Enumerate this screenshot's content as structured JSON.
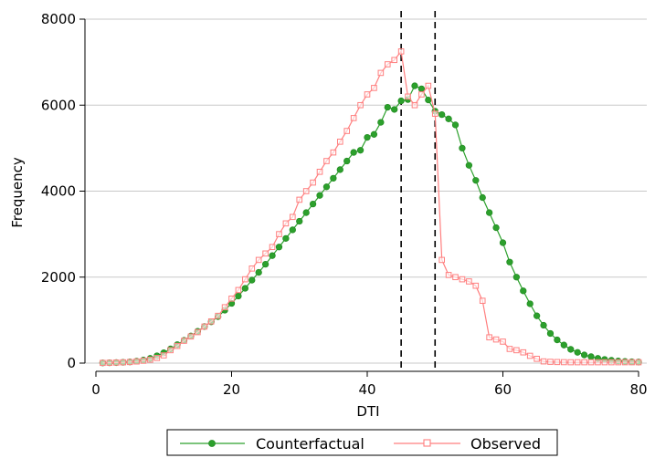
{
  "chart_data": {
    "type": "line",
    "xlabel": "DTI",
    "ylabel": "Frequency",
    "xlim": [
      0,
      80
    ],
    "ylim": [
      0,
      8000
    ],
    "xticks": [
      0,
      20,
      40,
      60,
      80
    ],
    "yticks": [
      0,
      2000,
      4000,
      6000,
      8000
    ],
    "grid": "horizontal",
    "legend_position": "bottom",
    "vlines": [
      45,
      50
    ],
    "series": [
      {
        "name": "Counterfactual",
        "color": "#2ca02c",
        "marker": "circle",
        "x": [
          1,
          2,
          3,
          4,
          5,
          6,
          7,
          8,
          9,
          10,
          11,
          12,
          13,
          14,
          15,
          16,
          17,
          18,
          19,
          20,
          21,
          22,
          23,
          24,
          25,
          26,
          27,
          28,
          29,
          30,
          31,
          32,
          33,
          34,
          35,
          36,
          37,
          38,
          39,
          40,
          41,
          42,
          43,
          44,
          45,
          46,
          47,
          48,
          49,
          50,
          51,
          52,
          53,
          54,
          55,
          56,
          57,
          58,
          59,
          60,
          61,
          62,
          63,
          64,
          65,
          66,
          67,
          68,
          69,
          70,
          71,
          72,
          73,
          74,
          75,
          76,
          77,
          78,
          79,
          80
        ],
        "values": [
          5,
          8,
          12,
          18,
          28,
          45,
          70,
          110,
          170,
          240,
          330,
          430,
          530,
          630,
          740,
          850,
          960,
          1080,
          1230,
          1390,
          1560,
          1740,
          1930,
          2110,
          2300,
          2500,
          2700,
          2900,
          3100,
          3300,
          3500,
          3700,
          3900,
          4100,
          4300,
          4500,
          4700,
          4900,
          4950,
          5250,
          5320,
          5600,
          5950,
          5900,
          6100,
          6130,
          6450,
          6380,
          6120,
          5860,
          5780,
          5680,
          5540,
          5000,
          4600,
          4250,
          3850,
          3500,
          3150,
          2800,
          2350,
          2000,
          1680,
          1380,
          1100,
          880,
          690,
          540,
          420,
          320,
          250,
          190,
          150,
          110,
          85,
          65,
          50,
          40,
          32,
          25
        ]
      },
      {
        "name": "Observed",
        "color": "#ff7f7f",
        "marker": "square",
        "x": [
          1,
          2,
          3,
          4,
          5,
          6,
          7,
          8,
          9,
          10,
          11,
          12,
          13,
          14,
          15,
          16,
          17,
          18,
          19,
          20,
          21,
          22,
          23,
          24,
          25,
          26,
          27,
          28,
          29,
          30,
          31,
          32,
          33,
          34,
          35,
          36,
          37,
          38,
          39,
          40,
          41,
          42,
          43,
          44,
          45,
          46,
          47,
          48,
          49,
          50,
          51,
          52,
          53,
          54,
          55,
          56,
          57,
          58,
          59,
          60,
          61,
          62,
          63,
          64,
          65,
          66,
          67,
          68,
          69,
          70,
          71,
          72,
          73,
          74,
          75,
          76,
          77,
          78,
          79,
          80
        ],
        "values": [
          5,
          8,
          12,
          18,
          25,
          38,
          55,
          80,
          120,
          180,
          300,
          400,
          520,
          620,
          720,
          850,
          970,
          1100,
          1300,
          1500,
          1700,
          1950,
          2200,
          2400,
          2550,
          2700,
          3000,
          3250,
          3400,
          3800,
          4000,
          4200,
          4450,
          4700,
          4900,
          5150,
          5400,
          5700,
          6000,
          6250,
          6400,
          6750,
          6950,
          7050,
          7250,
          6200,
          6000,
          6250,
          6450,
          5800,
          2400,
          2050,
          2000,
          1950,
          1900,
          1800,
          1450,
          600,
          550,
          500,
          330,
          300,
          250,
          170,
          100,
          40,
          30,
          25,
          22,
          20,
          20,
          20,
          20,
          20,
          20,
          20,
          20,
          20,
          20,
          20
        ]
      }
    ]
  }
}
